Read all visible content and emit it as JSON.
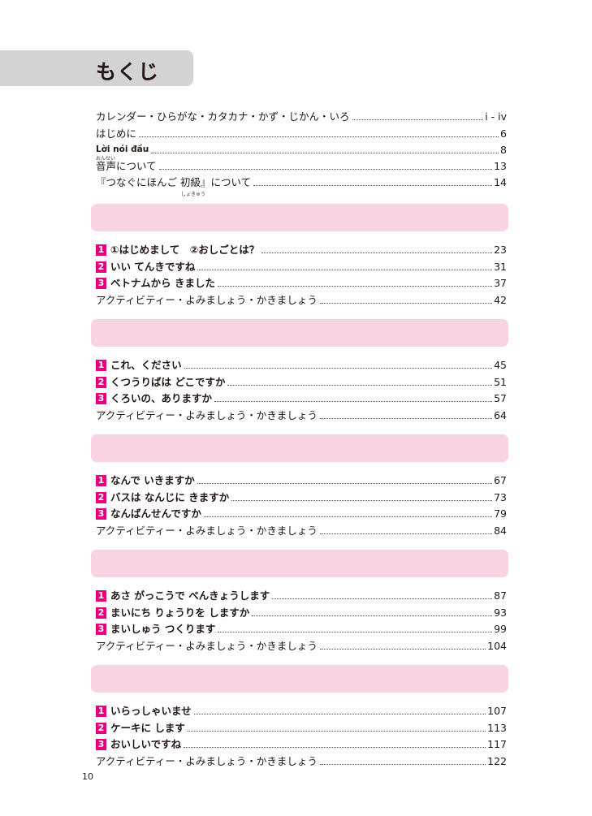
{
  "title": "もくじ",
  "intro": [
    {
      "text": "カレンダー・ひらがな・カタカナ・かず・じかん・いろ",
      "page": "i - iv"
    },
    {
      "text": "はじめに",
      "page": "6"
    },
    {
      "text": "Lời nói đầu",
      "page": "8"
    },
    {
      "text": "音声について",
      "page": "13",
      "ruby": "おんせい"
    },
    {
      "text": "『つなぐにほんご 初級』について",
      "page": "14",
      "ruby": "しょきゅう"
    }
  ],
  "sections": [
    {
      "items": [
        {
          "num": "1",
          "text": "①はじめまして　②おしごとは？",
          "page": "23"
        },
        {
          "num": "2",
          "text": "いい てんきですね",
          "page": "31"
        },
        {
          "num": "3",
          "text": "ベトナムから きました",
          "page": "37"
        }
      ],
      "activity": {
        "text": "アクティビティー・よみましょう・かきましょう",
        "page": "42"
      }
    },
    {
      "items": [
        {
          "num": "1",
          "text": "これ、ください",
          "page": "45"
        },
        {
          "num": "2",
          "text": "くつうりばは どこですか",
          "page": "51"
        },
        {
          "num": "3",
          "text": "くろいの、ありますか",
          "page": "57"
        }
      ],
      "activity": {
        "text": "アクティビティー・よみましょう・かきましょう",
        "page": "64"
      }
    },
    {
      "items": [
        {
          "num": "1",
          "text": "なんで いきますか",
          "page": "67"
        },
        {
          "num": "2",
          "text": "バスは なんじに きますか",
          "page": "73"
        },
        {
          "num": "3",
          "text": "なんばんせんですか",
          "page": "79"
        }
      ],
      "activity": {
        "text": "アクティビティー・よみましょう・かきましょう",
        "page": "84"
      }
    },
    {
      "items": [
        {
          "num": "1",
          "text": "あさ がっこうで べんきょうします",
          "page": "87"
        },
        {
          "num": "2",
          "text": "まいにち りょうりを しますか",
          "page": "93"
        },
        {
          "num": "3",
          "text": "まいしゅう つくります",
          "page": "99"
        }
      ],
      "activity": {
        "text": "アクティビティー・よみましょう・かきましょう",
        "page": "104"
      }
    },
    {
      "items": [
        {
          "num": "1",
          "text": "いらっしゃいませ",
          "page": "107"
        },
        {
          "num": "2",
          "text": "ケーキに します",
          "page": "113"
        },
        {
          "num": "3",
          "text": "おいしいですね",
          "page": "117"
        }
      ],
      "activity": {
        "text": "アクティビティー・よみましょう・かきましょう",
        "page": "122"
      }
    }
  ],
  "colors": {
    "band": "#f8d3e3",
    "badge": "#e4007f",
    "title_band": "#d3d3d3"
  },
  "page_number": "10"
}
